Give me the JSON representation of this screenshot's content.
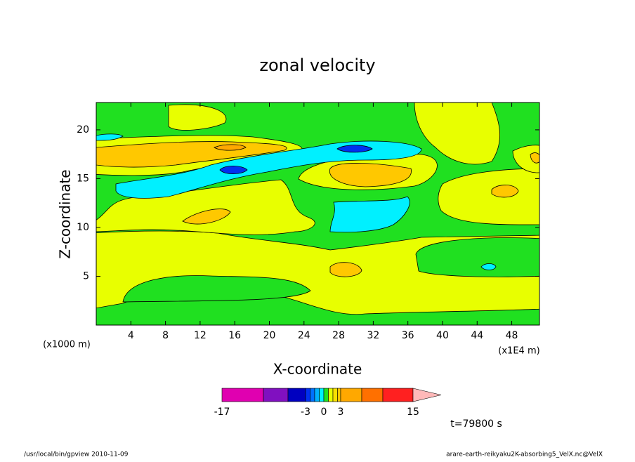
{
  "chart_data": {
    "type": "contour",
    "title": "zonal velocity",
    "x_label": "X-coordinate",
    "y_label": "Z-coordinate",
    "x_unit": "(x1E4 m)",
    "y_unit": "(x1000 m)",
    "xlim": [
      0,
      51.2
    ],
    "xticks": [
      4,
      8,
      12,
      16,
      20,
      24,
      28,
      32,
      36,
      40,
      44,
      48
    ],
    "ylim": [
      0,
      22.8
    ],
    "yticks": [
      5,
      10,
      15,
      20
    ],
    "time_label": "t=79800 s",
    "colorbar": {
      "levels": [
        -17,
        -11,
        -7,
        -3,
        -2.25,
        -1.5,
        -0.75,
        0,
        0.75,
        1.5,
        2.25,
        3,
        7,
        11,
        15
      ],
      "colors": [
        "#e000b0",
        "#8010c0",
        "#0000c0",
        "#0030f0",
        "#0070ff",
        "#00b0ff",
        "#00f0ff",
        "#20e020",
        "#e8ff00",
        "#f8e000",
        "#ffc800",
        "#ffa800",
        "#ff7000",
        "#ff2020",
        "#ff8070",
        "#ffb8b8"
      ],
      "ticks": [
        -17,
        -3,
        0,
        3,
        15
      ]
    },
    "footer_left": "/usr/local/bin/gpview  2010-11-09",
    "footer_right": "arare-earth-reikyaku2K-absorbing5_VelX.nc@VelX"
  }
}
